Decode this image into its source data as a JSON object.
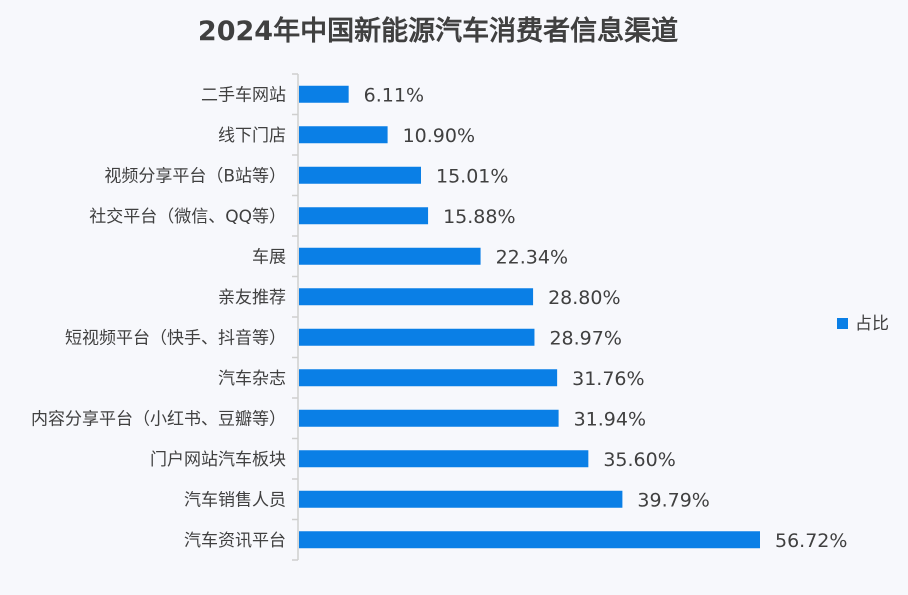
{
  "chart_data": {
    "type": "bar",
    "orientation": "horizontal",
    "title": "2024年中国新能源汽车消费者信息渠道",
    "xlabel": "",
    "ylabel": "",
    "categories": [
      "二手车网站",
      "线下门店",
      "视频分享平台（B站等）",
      "社交平台（微信、QQ等）",
      "车展",
      "亲友推荐",
      "短视频平台（快手、抖音等）",
      "汽车杂志",
      "内容分享平台（小红书、豆瓣等）",
      "门户网站汽车板块",
      "汽车销售人员",
      "汽车资讯平台"
    ],
    "series": [
      {
        "name": "占比",
        "values": [
          6.11,
          10.9,
          15.01,
          15.88,
          22.34,
          28.8,
          28.97,
          31.76,
          31.94,
          35.6,
          39.79,
          56.72
        ],
        "labels": [
          "6.11%",
          "10.90%",
          "15.01%",
          "15.88%",
          "22.34%",
          "28.80%",
          "28.97%",
          "31.76%",
          "31.94%",
          "35.60%",
          "39.79%",
          "56.72%"
        ],
        "color": "#0A7FE6"
      }
    ],
    "xlim": [
      0,
      60
    ],
    "grid": false,
    "legend": {
      "position": "right",
      "label": "占比"
    },
    "colors": {
      "bar": "#0A7FE6",
      "title": "#404040",
      "text": "#404040",
      "axis": "#CFCFCF",
      "background": "#F7F8FC"
    }
  }
}
